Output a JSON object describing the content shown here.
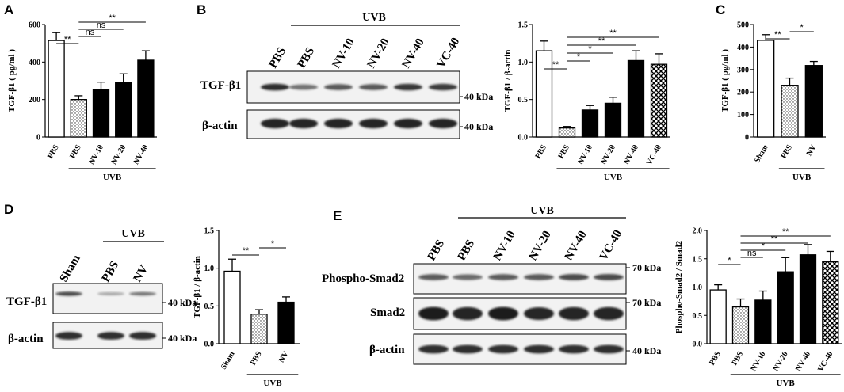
{
  "panels": {
    "A": "A",
    "B": "B",
    "C": "C",
    "D": "D",
    "E": "E"
  },
  "group_label": "UVB",
  "kda": {
    "k40": "40 kDa",
    "k70": "70 kDa"
  },
  "colors": {
    "bar_white": "#ffffff",
    "bar_black": "#000000",
    "stroke": "#000000",
    "band": "#1a1a1a"
  },
  "blots": {
    "B": {
      "lanes": [
        "PBS",
        "PBS",
        "NV-10",
        "NV-20",
        "NV-40",
        "VC-40"
      ],
      "rows": [
        {
          "label": "TGF-β1",
          "kda": "40 kDa",
          "intensity": [
            0.85,
            0.45,
            0.6,
            0.6,
            0.8,
            0.78
          ]
        },
        {
          "label": "β-actin",
          "kda": "40 kDa",
          "intensity": [
            0.95,
            0.95,
            0.95,
            0.95,
            0.95,
            0.95
          ]
        }
      ]
    },
    "D": {
      "lanes": [
        "Sham",
        "PBS",
        "NV"
      ],
      "rows": [
        {
          "label": "TGF-β1",
          "kda": "40 kDa",
          "intensity": [
            0.7,
            0.15,
            0.45
          ]
        },
        {
          "label": "β-actin",
          "kda": "40 kDa",
          "intensity": [
            0.85,
            0.85,
            0.85
          ]
        }
      ]
    },
    "E": {
      "lanes": [
        "PBS",
        "PBS",
        "NV-10",
        "NV-20",
        "NV-40",
        "VC-40"
      ],
      "rows": [
        {
          "label": "Phospho-Smad2",
          "kda": "70 kDa",
          "intensity": [
            0.6,
            0.5,
            0.6,
            0.6,
            0.7,
            0.7
          ]
        },
        {
          "label": "Smad2",
          "kda": "70 kDa",
          "intensity": [
            1.0,
            0.95,
            1.0,
            0.9,
            0.95,
            0.95
          ]
        },
        {
          "label": "β-actin",
          "kda": "40 kDa",
          "intensity": [
            0.85,
            0.85,
            0.85,
            0.85,
            0.85,
            0.85
          ]
        }
      ]
    }
  },
  "chart_data": [
    {
      "id": "A",
      "type": "bar",
      "ylabel": "TGF-β1 ( pg/ml )",
      "ylim": [
        0,
        600
      ],
      "yticks": [
        0,
        200,
        400,
        600
      ],
      "categories": [
        "PBS",
        "PBS",
        "NV-10",
        "NV-20",
        "NV-40"
      ],
      "values": [
        515,
        200,
        255,
        292,
        410
      ],
      "errors": [
        42,
        20,
        38,
        45,
        50
      ],
      "fills": [
        "white",
        "dots",
        "black",
        "black",
        "black"
      ],
      "uvb_from": 1,
      "uvb_to": 4,
      "sig": [
        {
          "from": 0,
          "to": 1,
          "label": "**"
        },
        {
          "from": 1,
          "to": 2,
          "label": "ns"
        },
        {
          "from": 1,
          "to": 3,
          "label": "ns"
        },
        {
          "from": 1,
          "to": 4,
          "label": "**"
        }
      ]
    },
    {
      "id": "B",
      "type": "bar",
      "ylabel": "TGF-β1 / β-actin",
      "ylim": [
        0,
        1.5
      ],
      "yticks": [
        0,
        0.5,
        1.0,
        1.5
      ],
      "tickLabels": [
        "0.0",
        "0.5",
        "1.0",
        "1.5"
      ],
      "categories": [
        "PBS",
        "PBS",
        "NV-10",
        "NV-20",
        "NV-40",
        "VC-40"
      ],
      "values": [
        1.15,
        0.12,
        0.36,
        0.45,
        1.02,
        0.97
      ],
      "errors": [
        0.13,
        0.02,
        0.06,
        0.08,
        0.13,
        0.14
      ],
      "fills": [
        "white",
        "dots",
        "black",
        "black",
        "black",
        "check"
      ],
      "uvb_from": 1,
      "uvb_to": 5,
      "sig": [
        {
          "from": 0,
          "to": 1,
          "label": "**"
        },
        {
          "from": 1,
          "to": 2,
          "label": "*"
        },
        {
          "from": 1,
          "to": 3,
          "label": "*"
        },
        {
          "from": 1,
          "to": 4,
          "label": "**"
        },
        {
          "from": 1,
          "to": 5,
          "label": "**"
        }
      ]
    },
    {
      "id": "C",
      "type": "bar",
      "ylabel": "TGF-β1 ( pg/ml )",
      "ylim": [
        0,
        500
      ],
      "yticks": [
        0,
        100,
        200,
        300,
        400,
        500
      ],
      "categories": [
        "Sham",
        "PBS",
        "NV"
      ],
      "values": [
        430,
        230,
        318
      ],
      "errors": [
        25,
        32,
        18
      ],
      "fills": [
        "white",
        "dots",
        "black"
      ],
      "uvb_from": 1,
      "uvb_to": 2,
      "sig": [
        {
          "from": 0,
          "to": 1,
          "label": "**"
        },
        {
          "from": 1,
          "to": 2,
          "label": "*"
        }
      ]
    },
    {
      "id": "D",
      "type": "bar",
      "ylabel": "TGF-β1 / β-actin",
      "ylim": [
        0,
        1.5
      ],
      "yticks": [
        0,
        0.5,
        1.0,
        1.5
      ],
      "tickLabels": [
        "0.0",
        "0.5",
        "1.0",
        "1.5"
      ],
      "categories": [
        "Sham",
        "PBS",
        "NV"
      ],
      "values": [
        0.96,
        0.39,
        0.55
      ],
      "errors": [
        0.16,
        0.06,
        0.07
      ],
      "fills": [
        "white",
        "dots",
        "black"
      ],
      "uvb_from": 1,
      "uvb_to": 2,
      "sig": [
        {
          "from": 0,
          "to": 1,
          "label": "**"
        },
        {
          "from": 1,
          "to": 2,
          "label": "*"
        }
      ]
    },
    {
      "id": "E",
      "type": "bar",
      "ylabel": "Phospho-Smad2 / Smad2",
      "ylim": [
        0,
        2.0
      ],
      "yticks": [
        0,
        0.5,
        1.0,
        1.5,
        2.0
      ],
      "tickLabels": [
        "0.0",
        "0.5",
        "1.0",
        "1.5",
        "2.0"
      ],
      "categories": [
        "PBS",
        "PBS",
        "NV-10",
        "NV-20",
        "NV-40",
        "VC-40"
      ],
      "values": [
        0.95,
        0.65,
        0.77,
        1.27,
        1.57,
        1.45
      ],
      "errors": [
        0.09,
        0.14,
        0.16,
        0.25,
        0.18,
        0.18
      ],
      "fills": [
        "white",
        "dots",
        "black",
        "black",
        "black",
        "check"
      ],
      "uvb_from": 1,
      "uvb_to": 5,
      "sig": [
        {
          "from": 0,
          "to": 1,
          "label": "*"
        },
        {
          "from": 1,
          "to": 2,
          "label": "ns"
        },
        {
          "from": 1,
          "to": 3,
          "label": "*"
        },
        {
          "from": 1,
          "to": 4,
          "label": "**"
        },
        {
          "from": 1,
          "to": 5,
          "label": "**"
        }
      ]
    }
  ]
}
